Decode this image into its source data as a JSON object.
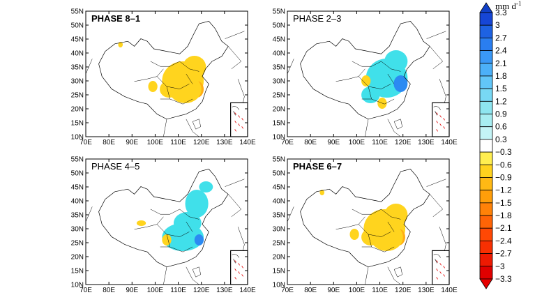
{
  "panels": [
    {
      "title": "PHASE 8–1",
      "anomaly": "dry"
    },
    {
      "title": "PHASE 2–3",
      "anomaly": "wet"
    },
    {
      "title": "PHASE 4–5",
      "anomaly": "mixed"
    },
    {
      "title": "PHASE 6–7",
      "anomaly": "dry"
    }
  ],
  "axes": {
    "lon_ticks": [
      "70E",
      "80E",
      "90E",
      "100E",
      "110E",
      "120E",
      "130E",
      "140E"
    ],
    "lat_ticks": [
      "10N",
      "15N",
      "20N",
      "25N",
      "30N",
      "35N",
      "40N",
      "45N",
      "50N",
      "55N"
    ],
    "lon_range": [
      70,
      140
    ],
    "lat_range": [
      10,
      55
    ]
  },
  "colorbar": {
    "unit_base": "mm d",
    "unit_exp": "-1",
    "labels": [
      "3.3",
      "3",
      "2.7",
      "2.4",
      "2.1",
      "1.8",
      "1.5",
      "1.2",
      "0.9",
      "0.6",
      "0.3",
      "−0.3",
      "−0.6",
      "−0.9",
      "−1.2",
      "−1.5",
      "−1.8",
      "−2.1",
      "−2.4",
      "−2.7",
      "−3",
      "−3.3"
    ],
    "colors": [
      "#1646d6",
      "#1e62e2",
      "#2a7ef0",
      "#3a98f6",
      "#4cb0f8",
      "#62c6f8",
      "#78d8f4",
      "#8ee6f0",
      "#a8eef2",
      "#c4f4f6",
      "#ffffff",
      "#ffee50",
      "#ffd21e",
      "#ffb914",
      "#ff9e0a",
      "#ff8208",
      "#ff6406",
      "#ff4804",
      "#f83002",
      "#ee1a02",
      "#e00000"
    ],
    "top_color": "#1040c8",
    "bottom_color": "#e60000"
  },
  "colors": {
    "dry": "#ffd41e",
    "dry_strong": "#ffae14",
    "wet": "#40e0ea",
    "wet_strong": "#2b8af2"
  }
}
